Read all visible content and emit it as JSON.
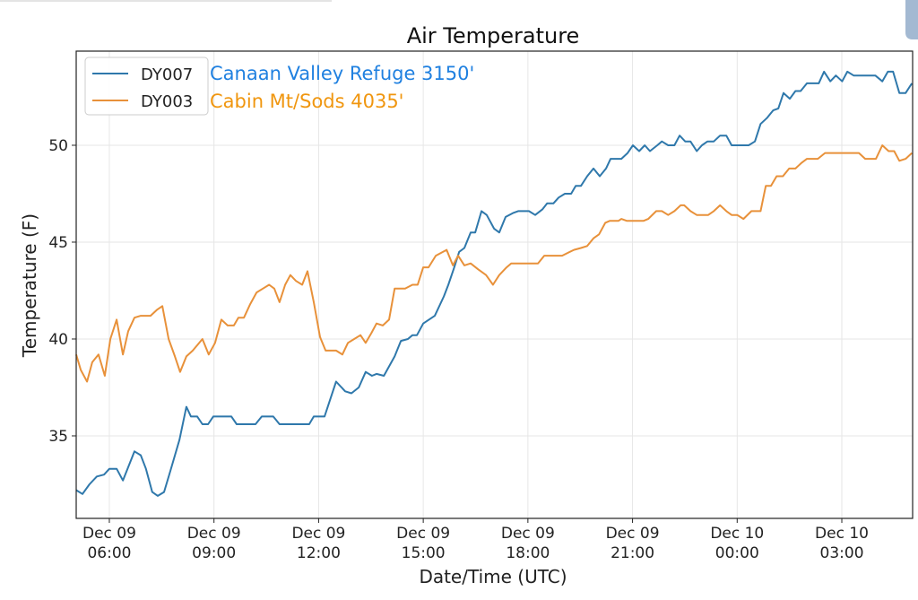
{
  "chart_data": {
    "type": "line",
    "title": "Air Temperature",
    "xlabel": "Date/Time (UTC)",
    "ylabel": "Temperature (F)",
    "x_units": "hours from Dec 09 00:00 UTC",
    "xlim": [
      5.05,
      29.03
    ],
    "ylim": [
      30.74,
      54.86
    ],
    "grid": true,
    "legend_position": "top-left",
    "yticks": [
      35,
      40,
      45,
      50
    ],
    "xticks": [
      {
        "value": 6,
        "line1": "Dec 09",
        "line2": "06:00"
      },
      {
        "value": 9,
        "line1": "Dec 09",
        "line2": "09:00"
      },
      {
        "value": 12,
        "line1": "Dec 09",
        "line2": "12:00"
      },
      {
        "value": 15,
        "line1": "Dec 09",
        "line2": "15:00"
      },
      {
        "value": 18,
        "line1": "Dec 09",
        "line2": "18:00"
      },
      {
        "value": 21,
        "line1": "Dec 09",
        "line2": "21:00"
      },
      {
        "value": 24,
        "line1": "Dec 10",
        "line2": "00:00"
      },
      {
        "value": 27,
        "line1": "Dec 10",
        "line2": "03:00"
      }
    ],
    "series": [
      {
        "name": "DY007",
        "station_label": "Canaan Valley Refuge 3150'",
        "color": "#2f78ab",
        "label_color": "#1f80e0",
        "x": [
          5.05,
          5.23,
          5.43,
          5.64,
          5.85,
          6.0,
          6.21,
          6.39,
          6.72,
          6.9,
          7.05,
          7.23,
          7.39,
          7.57,
          7.75,
          8.01,
          8.21,
          8.34,
          8.52,
          8.67,
          8.83,
          8.98,
          9.5,
          9.65,
          10.19,
          10.37,
          10.7,
          10.88,
          11.73,
          11.86,
          12.17,
          12.5,
          12.76,
          12.94,
          13.15,
          13.35,
          13.53,
          13.66,
          13.87,
          14.18,
          14.36,
          14.56,
          14.69,
          14.82,
          15.0,
          15.33,
          15.59,
          15.72,
          15.87,
          16.03,
          16.18,
          16.36,
          16.49,
          16.67,
          16.82,
          17.03,
          17.18,
          17.36,
          17.57,
          17.72,
          18.03,
          18.21,
          18.42,
          18.55,
          18.73,
          18.88,
          19.06,
          19.24,
          19.37,
          19.52,
          19.7,
          19.88,
          20.06,
          20.24,
          20.37,
          20.68,
          20.86,
          21.01,
          21.19,
          21.35,
          21.5,
          21.71,
          21.84,
          22.02,
          22.2,
          22.35,
          22.51,
          22.66,
          22.84,
          22.99,
          23.15,
          23.33,
          23.51,
          23.69,
          23.84,
          24.33,
          24.51,
          24.67,
          24.85,
          25.03,
          25.18,
          25.33,
          25.51,
          25.67,
          25.82,
          26.0,
          26.34,
          26.49,
          26.67,
          26.83,
          27.01,
          27.16,
          27.34,
          27.96,
          28.16,
          28.32,
          28.47,
          28.65,
          28.83,
          29.01
        ],
        "y": [
          32.2,
          32.0,
          32.5,
          32.9,
          33.0,
          33.3,
          33.3,
          32.7,
          34.2,
          34.0,
          33.3,
          32.1,
          31.9,
          32.1,
          33.2,
          34.8,
          36.5,
          36.0,
          36.0,
          35.6,
          35.6,
          36.0,
          36.0,
          35.6,
          35.6,
          36.0,
          36.0,
          35.6,
          35.6,
          36.0,
          36.0,
          37.8,
          37.3,
          37.2,
          37.5,
          38.3,
          38.1,
          38.2,
          38.1,
          39.1,
          39.9,
          40.0,
          40.2,
          40.2,
          40.8,
          41.2,
          42.2,
          42.8,
          43.6,
          44.5,
          44.7,
          45.5,
          45.5,
          46.6,
          46.4,
          45.7,
          45.5,
          46.3,
          46.5,
          46.6,
          46.6,
          46.4,
          46.7,
          47.0,
          47.0,
          47.3,
          47.5,
          47.5,
          47.9,
          47.9,
          48.4,
          48.8,
          48.4,
          48.8,
          49.3,
          49.3,
          49.6,
          50.0,
          49.7,
          50.0,
          49.7,
          50.0,
          50.2,
          50.0,
          50.0,
          50.5,
          50.2,
          50.2,
          49.7,
          50.0,
          50.2,
          50.2,
          50.5,
          50.5,
          50.0,
          50.0,
          50.2,
          51.1,
          51.4,
          51.8,
          51.9,
          52.7,
          52.4,
          52.8,
          52.8,
          53.2,
          53.2,
          53.8,
          53.3,
          53.6,
          53.3,
          53.8,
          53.6,
          53.6,
          53.3,
          53.8,
          53.8,
          52.7,
          52.7,
          53.2
        ]
      },
      {
        "name": "DY003",
        "station_label": "Cabin Mt/Sods 4035'",
        "color": "#e8913a",
        "label_color": "#f0960f",
        "x": [
          5.05,
          5.18,
          5.36,
          5.51,
          5.69,
          5.87,
          6.03,
          6.21,
          6.39,
          6.54,
          6.72,
          6.9,
          7.18,
          7.36,
          7.52,
          7.7,
          7.88,
          8.03,
          8.21,
          8.39,
          8.67,
          8.85,
          9.03,
          9.21,
          9.39,
          9.57,
          9.7,
          9.86,
          10.04,
          10.22,
          10.4,
          10.58,
          10.73,
          10.88,
          11.04,
          11.19,
          11.35,
          11.53,
          11.68,
          11.86,
          12.04,
          12.2,
          12.5,
          12.68,
          12.84,
          13.02,
          13.2,
          13.35,
          13.51,
          13.66,
          13.84,
          14.02,
          14.18,
          14.48,
          14.69,
          14.84,
          15.0,
          15.15,
          15.36,
          15.67,
          15.85,
          16.0,
          16.18,
          16.36,
          16.57,
          16.8,
          17.0,
          17.18,
          17.39,
          17.52,
          18.29,
          18.47,
          18.98,
          19.32,
          19.52,
          19.7,
          19.88,
          20.04,
          20.22,
          20.35,
          20.6,
          20.68,
          20.83,
          21.32,
          21.45,
          21.68,
          21.84,
          22.02,
          22.2,
          22.38,
          22.48,
          22.66,
          22.84,
          23.17,
          23.33,
          23.51,
          23.69,
          23.84,
          24.0,
          24.18,
          24.41,
          24.67,
          24.82,
          24.97,
          25.13,
          25.31,
          25.49,
          25.67,
          25.85,
          26.0,
          26.31,
          26.52,
          27.49,
          27.67,
          27.98,
          28.16,
          28.34,
          28.5,
          28.65,
          28.83,
          29.01
        ],
        "y": [
          39.2,
          38.4,
          37.8,
          38.8,
          39.2,
          38.1,
          40.0,
          41.0,
          39.2,
          40.4,
          41.1,
          41.2,
          41.2,
          41.5,
          41.7,
          40.0,
          39.1,
          38.3,
          39.1,
          39.4,
          40.0,
          39.2,
          39.8,
          41.0,
          40.7,
          40.7,
          41.1,
          41.1,
          41.8,
          42.4,
          42.6,
          42.8,
          42.6,
          41.9,
          42.8,
          43.3,
          43.0,
          42.8,
          43.5,
          41.9,
          40.1,
          39.4,
          39.4,
          39.2,
          39.8,
          40.0,
          40.2,
          39.8,
          40.3,
          40.8,
          40.7,
          41.0,
          42.6,
          42.6,
          42.8,
          42.8,
          43.7,
          43.7,
          44.3,
          44.6,
          43.8,
          44.3,
          43.8,
          43.9,
          43.6,
          43.3,
          42.8,
          43.3,
          43.7,
          43.9,
          43.9,
          44.3,
          44.3,
          44.6,
          44.7,
          44.8,
          45.2,
          45.4,
          46.0,
          46.1,
          46.1,
          46.2,
          46.1,
          46.1,
          46.2,
          46.6,
          46.6,
          46.4,
          46.6,
          46.9,
          46.9,
          46.6,
          46.4,
          46.4,
          46.6,
          46.9,
          46.6,
          46.4,
          46.4,
          46.2,
          46.6,
          46.6,
          47.9,
          47.9,
          48.4,
          48.4,
          48.8,
          48.8,
          49.1,
          49.3,
          49.3,
          49.6,
          49.6,
          49.3,
          49.3,
          50.0,
          49.7,
          49.7,
          49.2,
          49.3,
          49.6
        ]
      }
    ]
  }
}
